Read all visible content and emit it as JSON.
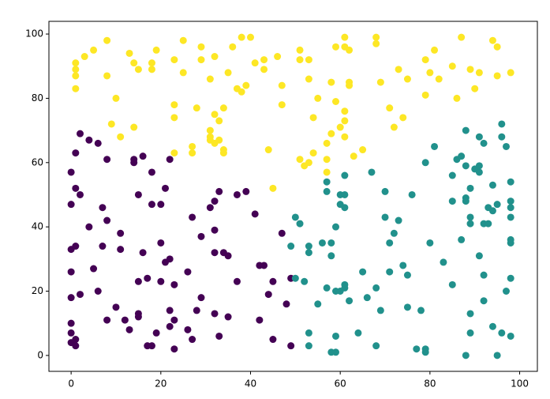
{
  "chart_data": {
    "type": "scatter",
    "xlim": [
      -4.95,
      103.95
    ],
    "ylim": [
      -4.95,
      103.95
    ],
    "xticks": [
      0,
      20,
      40,
      60,
      80,
      100
    ],
    "yticks": [
      0,
      20,
      40,
      60,
      80,
      100
    ],
    "grid": false,
    "series": [
      {
        "color": "#fde725",
        "x": [
          1,
          1,
          1,
          1,
          3,
          5,
          8,
          8,
          9,
          10,
          11,
          13,
          14,
          14,
          15,
          18,
          18,
          19,
          23,
          23,
          23,
          23,
          25,
          25,
          27,
          27,
          28,
          29,
          29,
          31,
          31,
          31,
          31,
          32,
          32,
          32,
          33,
          33,
          34,
          34,
          34,
          35,
          36,
          37,
          38,
          38,
          39,
          40,
          41,
          43,
          43,
          44,
          45,
          46,
          47,
          47,
          51,
          51,
          51,
          52,
          53,
          53,
          53,
          54,
          54,
          55,
          57,
          57,
          57,
          58,
          58,
          59,
          59,
          60,
          61,
          61,
          61,
          61,
          61,
          62,
          62,
          62,
          63,
          65,
          68,
          68,
          69,
          71,
          72,
          73,
          74,
          75,
          79,
          79,
          80,
          81,
          82,
          85,
          86,
          87,
          89,
          90,
          91,
          94,
          95,
          95,
          98
        ],
        "y": [
          91,
          89,
          87,
          83,
          93,
          95,
          98,
          87,
          72,
          80,
          68,
          94,
          91,
          71,
          89,
          91,
          89,
          95,
          92,
          78,
          74,
          63,
          98,
          88,
          65,
          63,
          77,
          96,
          92,
          86,
          70,
          68,
          67,
          93,
          75,
          66,
          73,
          67,
          77,
          64,
          63,
          88,
          96,
          83,
          99,
          82,
          84,
          99,
          91,
          92,
          89,
          64,
          52,
          93,
          84,
          78,
          95,
          92,
          61,
          59,
          92,
          86,
          60,
          74,
          63,
          80,
          66,
          61,
          57,
          85,
          69,
          96,
          79,
          71,
          99,
          96,
          76,
          73,
          68,
          95,
          85,
          84,
          62,
          64,
          99,
          97,
          85,
          77,
          71,
          89,
          74,
          86,
          92,
          81,
          88,
          95,
          86,
          90,
          80,
          99,
          89,
          83,
          88,
          98,
          96,
          87,
          88
        ]
      },
      {
        "color": "#440154",
        "x": [
          0,
          0,
          0,
          0,
          0,
          0,
          0,
          0,
          1,
          1,
          1,
          1,
          1,
          2,
          2,
          2,
          4,
          4,
          5,
          6,
          6,
          7,
          7,
          8,
          8,
          8,
          10,
          11,
          11,
          12,
          13,
          14,
          14,
          15,
          15,
          15,
          15,
          16,
          16,
          17,
          17,
          18,
          18,
          18,
          19,
          20,
          20,
          20,
          21,
          21,
          22,
          22,
          22,
          22,
          23,
          23,
          23,
          26,
          26,
          27,
          27,
          28,
          29,
          29,
          31,
          32,
          32,
          32,
          32,
          33,
          33,
          34,
          35,
          35,
          37,
          37,
          39,
          41,
          42,
          42,
          43,
          44,
          45,
          45,
          47,
          48,
          49,
          49
        ],
        "y": [
          57,
          47,
          33,
          26,
          18,
          10,
          7,
          4,
          63,
          52,
          34,
          5,
          3,
          69,
          50,
          19,
          67,
          40,
          27,
          66,
          20,
          46,
          34,
          61,
          42,
          11,
          15,
          38,
          33,
          11,
          8,
          61,
          60,
          50,
          23,
          13,
          12,
          62,
          32,
          24,
          3,
          57,
          47,
          3,
          7,
          47,
          35,
          23,
          52,
          29,
          61,
          30,
          14,
          9,
          22,
          11,
          2,
          26,
          8,
          43,
          5,
          14,
          37,
          18,
          46,
          48,
          39,
          32,
          13,
          51,
          6,
          32,
          31,
          12,
          50,
          23,
          51,
          44,
          28,
          11,
          28,
          19,
          23,
          5,
          38,
          16,
          24,
          3
        ]
      },
      {
        "color": "#21918c",
        "x": [
          49,
          50,
          50,
          51,
          52,
          53,
          53,
          53,
          53,
          55,
          56,
          57,
          57,
          57,
          58,
          58,
          58,
          59,
          59,
          59,
          59,
          60,
          60,
          60,
          61,
          61,
          61,
          61,
          61,
          62,
          64,
          65,
          66,
          67,
          68,
          68,
          69,
          70,
          70,
          71,
          71,
          72,
          73,
          74,
          75,
          75,
          76,
          77,
          78,
          79,
          79,
          79,
          80,
          81,
          83,
          85,
          85,
          85,
          86,
          87,
          87,
          88,
          88,
          88,
          88,
          88,
          89,
          89,
          89,
          89,
          89,
          90,
          91,
          91,
          91,
          91,
          92,
          92,
          92,
          92,
          93,
          93,
          94,
          94,
          94,
          95,
          95,
          96,
          96,
          96,
          97,
          97,
          98,
          98,
          98,
          98,
          98,
          98,
          98,
          98
        ],
        "y": [
          34,
          43,
          24,
          41,
          23,
          34,
          32,
          7,
          3,
          16,
          35,
          54,
          51,
          21,
          35,
          31,
          1,
          40,
          20,
          6,
          1,
          50,
          47,
          20,
          56,
          50,
          46,
          22,
          21,
          17,
          7,
          26,
          18,
          57,
          21,
          3,
          14,
          51,
          43,
          35,
          26,
          38,
          42,
          28,
          25,
          15,
          50,
          2,
          14,
          60,
          2,
          1,
          35,
          65,
          29,
          56,
          48,
          22,
          61,
          62,
          36,
          70,
          59,
          49,
          48,
          0,
          52,
          43,
          41,
          13,
          7,
          58,
          68,
          31,
          57,
          59,
          66,
          41,
          25,
          17,
          46,
          41,
          53,
          45,
          9,
          47,
          0,
          72,
          68,
          7,
          65,
          20,
          54,
          48,
          46,
          43,
          36,
          35,
          24,
          6
        ]
      }
    ]
  }
}
